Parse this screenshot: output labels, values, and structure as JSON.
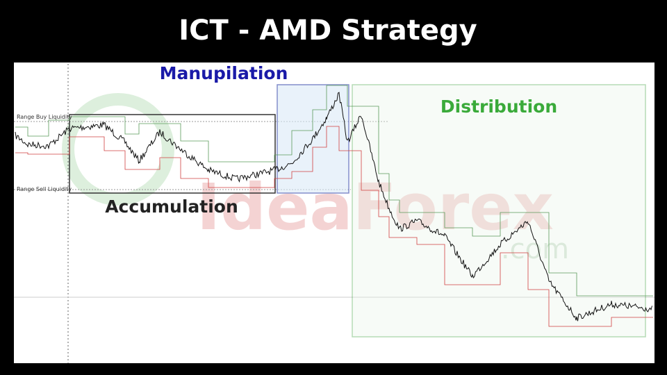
{
  "header": {
    "title": "ICT - AMD Strategy"
  },
  "phases": {
    "manipulation": "Manupilation",
    "accumulation": "Accumulation",
    "distribution": "Distribution"
  },
  "levels": {
    "buy": "Range Buy Liquidity",
    "sell": "Range Sell Liquidity"
  },
  "watermark": {
    "brand": "IdeaForex",
    "domain": ".com"
  }
}
